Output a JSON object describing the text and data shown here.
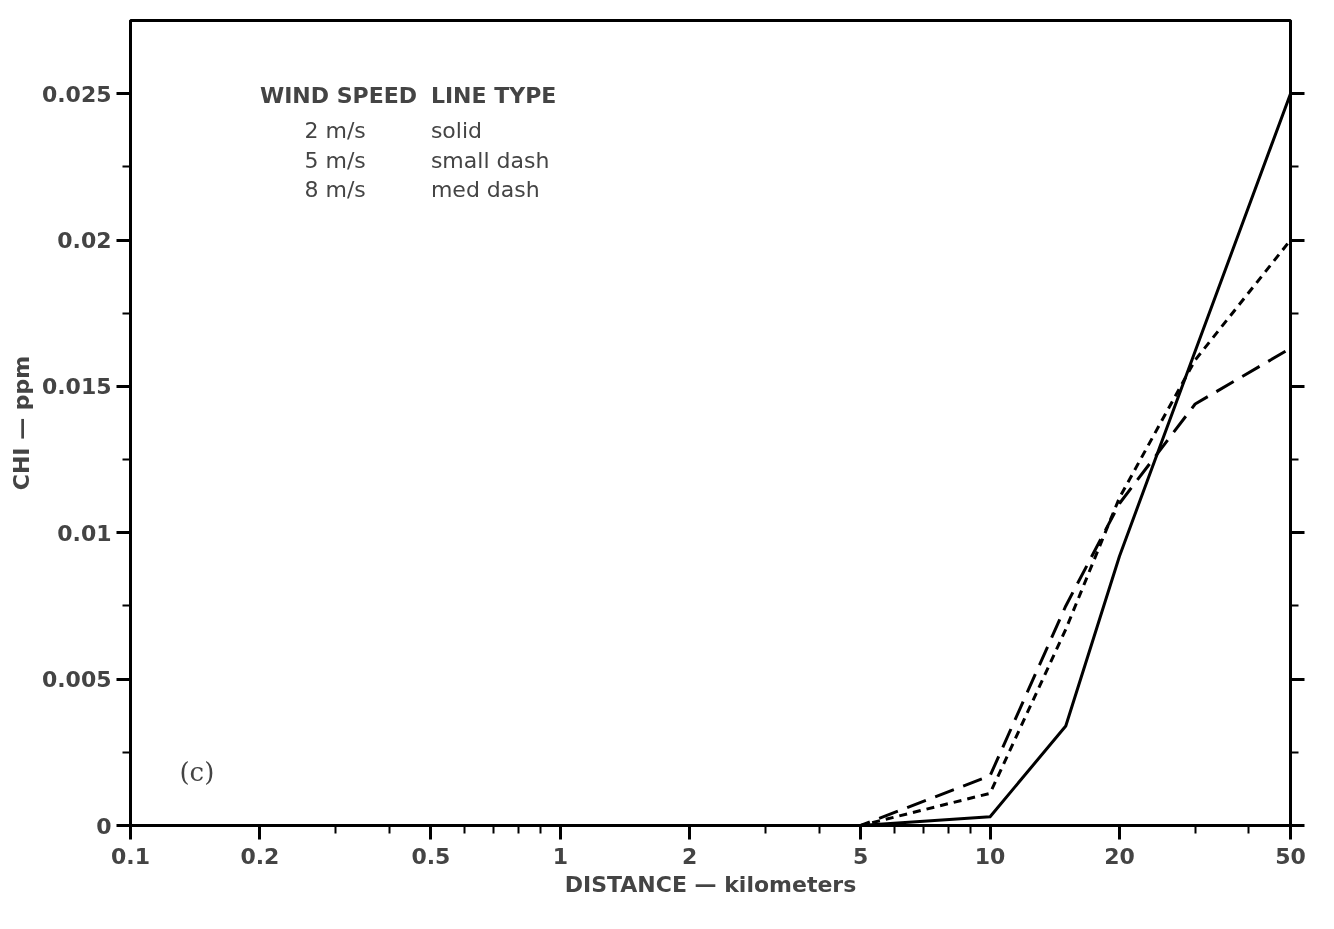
{
  "chart_data": {
    "type": "line",
    "xlabel": "DISTANCE — kilometers",
    "ylabel": "CHI — ppm",
    "log": "x",
    "x": [
      0.1,
      5,
      10,
      15,
      20,
      30,
      50
    ],
    "series": [
      {
        "color": "#000000",
        "line_style": "solid",
        "values": [
          0,
          0,
          0.0003,
          0.0034,
          0.0092,
          0.0162,
          0.025
        ]
      },
      {
        "color": "#000000",
        "line_style": "dotted",
        "values": [
          0,
          0,
          0.0011,
          0.0067,
          0.0112,
          0.0159,
          0.02
        ]
      },
      {
        "color": "#000000",
        "line_style": "dashed",
        "values": [
          0,
          0,
          0.0017,
          0.0075,
          0.011,
          0.0144,
          0.0163
        ]
      }
    ],
    "xlim": [
      0.1,
      50
    ],
    "xticks": [
      0.1,
      0.2,
      {
        "value": 0.3,
        "label": null
      },
      {
        "value": 0.4,
        "label": null
      },
      0.5,
      {
        "value": 0.6,
        "label": null
      },
      {
        "value": 0.7,
        "label": null
      },
      {
        "value": 0.8,
        "label": null
      },
      {
        "value": 0.9,
        "label": null
      },
      1,
      2,
      {
        "value": 3,
        "label": null
      },
      {
        "value": 4,
        "label": null
      },
      5,
      {
        "value": 6,
        "label": null
      },
      {
        "value": 7,
        "label": null
      },
      {
        "value": 8,
        "label": null
      },
      {
        "value": 9,
        "label": null
      },
      10,
      20,
      {
        "value": 30,
        "label": null
      },
      {
        "value": 40,
        "label": null
      },
      50
    ],
    "ylim": [
      0,
      0.0275
    ],
    "yticks": [
      0,
      {
        "value": 0.0025,
        "label": null
      },
      0.005,
      {
        "value": 0.0075,
        "label": null
      },
      0.01,
      {
        "value": 0.0125,
        "label": null
      },
      0.015,
      {
        "value": 0.0175,
        "label": null
      },
      0.02,
      {
        "value": 0.0225,
        "label": null
      },
      0.025
    ],
    "grid": false,
    "marker": "none",
    "annotations": [
      "WIND SPEED",
      "LINE TYPE",
      "2 m/s",
      "solid",
      "5 m/s",
      "small dash",
      "8 m/s",
      "med dash",
      "(c)"
    ]
  }
}
